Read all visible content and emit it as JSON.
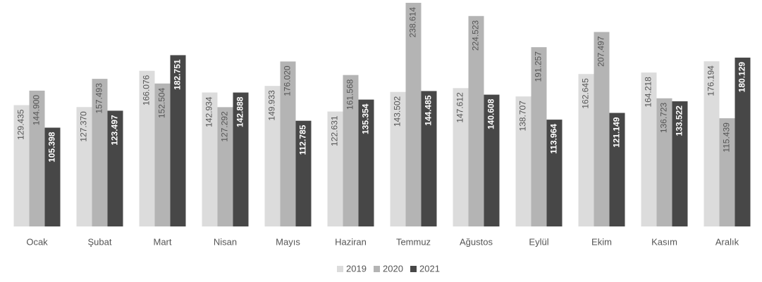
{
  "chart_data": {
    "type": "bar",
    "categories": [
      "Ocak",
      "Şubat",
      "Mart",
      "Nisan",
      "Mayıs",
      "Haziran",
      "Temmuz",
      "Ağustos",
      "Eylül",
      "Ekim",
      "Kasım",
      "Aralık"
    ],
    "series": [
      {
        "name": "2019",
        "color": "#dcdcdc",
        "values": [
          129435,
          127370,
          166076,
          142934,
          149933,
          122631,
          143502,
          147612,
          138707,
          162645,
          164218,
          176194
        ],
        "value_labels": [
          "129.435",
          "127.370",
          "166.076",
          "142.934",
          "149.933",
          "122.631",
          "143.502",
          "147.612",
          "138.707",
          "162.645",
          "164.218",
          "176.194"
        ]
      },
      {
        "name": "2020",
        "color": "#b4b4b4",
        "values": [
          144900,
          157493,
          152504,
          127292,
          176020,
          161568,
          238614,
          224523,
          191257,
          207497,
          136723,
          115439
        ],
        "value_labels": [
          "144.900",
          "157.493",
          "152.504",
          "127.292",
          "176.020",
          "161.568",
          "238.614",
          "224.523",
          "191.257",
          "207.497",
          "136.723",
          "115.439"
        ]
      },
      {
        "name": "2021",
        "color": "#474747",
        "values": [
          105398,
          123497,
          182751,
          142888,
          112785,
          135354,
          144485,
          140608,
          113964,
          121149,
          133522,
          180129
        ],
        "value_labels": [
          "105.398",
          "123.497",
          "182.751",
          "142.888",
          "112.785",
          "135.354",
          "144.485",
          "140.608",
          "113.964",
          "121.149",
          "133.522",
          "180.129"
        ]
      }
    ],
    "legend": "bottom"
  }
}
